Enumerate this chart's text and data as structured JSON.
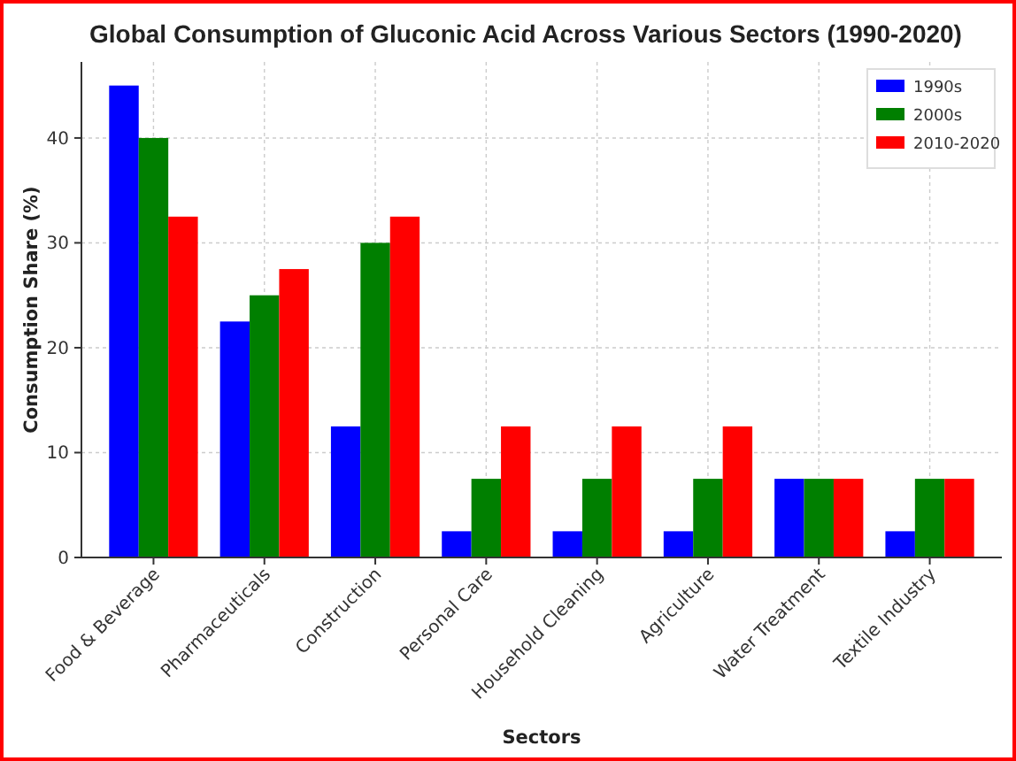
{
  "chart_data": {
    "type": "bar",
    "title": "Global Consumption of Gluconic Acid Across Various Sectors (1990-2020)",
    "xlabel": "Sectors",
    "ylabel": "Consumption Share (%)",
    "categories": [
      "Food & Beverage",
      "Pharmaceuticals",
      "Construction",
      "Personal Care",
      "Household Cleaning",
      "Agriculture",
      "Water Treatment",
      "Textile Industry"
    ],
    "series": [
      {
        "name": "1990s",
        "color": "#0000ff",
        "values": [
          45,
          22.5,
          12.5,
          2.5,
          2.5,
          2.5,
          7.5,
          2.5
        ]
      },
      {
        "name": "2000s",
        "color": "#007f00",
        "values": [
          40,
          25,
          30,
          7.5,
          7.5,
          7.5,
          7.5,
          7.5
        ]
      },
      {
        "name": "2010-2020",
        "color": "#ff0000",
        "values": [
          32.5,
          27.5,
          32.5,
          12.5,
          12.5,
          12.5,
          7.5,
          7.5
        ]
      }
    ],
    "ylim": [
      0,
      47.25
    ],
    "yticks": [
      0,
      10,
      20,
      30,
      40
    ],
    "grid": true,
    "legend": "top right"
  }
}
